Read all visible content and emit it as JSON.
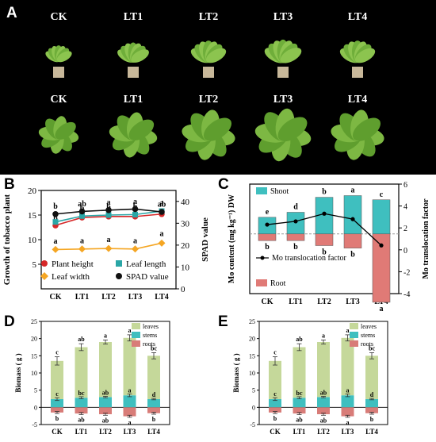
{
  "panel_a": {
    "letter": "A",
    "row_labels_top": [
      "CK",
      "LT1",
      "LT2",
      "LT3",
      "LT4"
    ],
    "row_labels_bottom": [
      "CK",
      "LT1",
      "LT2",
      "LT3",
      "LT4"
    ]
  },
  "chart_data": [
    {
      "panel": "B",
      "type": "line",
      "categories": [
        "CK",
        "LT1",
        "LT2",
        "LT3",
        "LT4"
      ],
      "ylabel": "Growth of tobacco plant",
      "ylabel_right": "SPAD value",
      "ylim": [
        0,
        20
      ],
      "ylim_right": [
        0,
        45
      ],
      "yticks": [
        5,
        10,
        15,
        20
      ],
      "yticks_right": [
        0,
        10,
        20,
        30,
        40
      ],
      "series": [
        {
          "name": "Plant height",
          "axis": "left",
          "color": "#d62728",
          "marker": "circle",
          "values": [
            12.9,
            14.5,
            14.7,
            14.7,
            15.2
          ],
          "errors": [
            0.4,
            0.3,
            0.3,
            0.3,
            0.3
          ],
          "letters": [
            "b",
            "a",
            "a",
            "a",
            "a"
          ]
        },
        {
          "name": "Leaf length",
          "axis": "left",
          "color": "#2aa6a6",
          "marker": "square",
          "values": [
            13.6,
            14.8,
            15.0,
            15.1,
            15.8
          ],
          "errors": [
            0.3,
            0.3,
            0.3,
            0.3,
            0.3
          ],
          "letters": [
            "c",
            "b",
            "b",
            "b",
            "a"
          ]
        },
        {
          "name": "Leaf width",
          "axis": "left",
          "color": "#f5a623",
          "marker": "diamond",
          "values": [
            8.0,
            8.1,
            8.2,
            8.1,
            9.3
          ],
          "errors": [
            0.4,
            0.4,
            0.5,
            0.4,
            0.6
          ],
          "letters": [
            "a",
            "a",
            "a",
            "a",
            "a"
          ]
        },
        {
          "name": "SPAD value",
          "axis": "right",
          "color": "#111111",
          "marker": "circle",
          "values": [
            34.2,
            35.4,
            36.0,
            36.5,
            35.2
          ],
          "errors": [
            0.6,
            0.6,
            0.6,
            0.5,
            0.5
          ],
          "letters": [
            "b",
            "ab",
            "a",
            "a",
            "ab"
          ]
        }
      ],
      "legend": "bottom"
    },
    {
      "panel": "C",
      "type": "bar",
      "categories": [
        "CK",
        "LT1",
        "LT2",
        "LT3",
        "LT4"
      ],
      "ylabel": "Mo content (mg kg⁻¹) DW",
      "ylabel_right": "Mo translocation factor",
      "yticks_right": [
        -4,
        -2,
        0,
        2,
        4,
        6
      ],
      "ylim_right": [
        -4,
        6
      ],
      "series": [
        {
          "name": "Shoot",
          "color": "#3fbfbf",
          "values": [
            2.0,
            2.6,
            4.4,
            4.6,
            4.1
          ],
          "letters": [
            "e",
            "d",
            "b",
            "a",
            "c"
          ]
        },
        {
          "name": "Root",
          "color": "#e07a76",
          "values": [
            -0.8,
            -0.8,
            -1.4,
            -1.7,
            -8.2
          ],
          "letters": [
            "b",
            "b",
            "b",
            "b",
            "a"
          ]
        },
        {
          "name": "Mo translocation factor",
          "color": "#000000",
          "type": "line",
          "values": [
            2.3,
            2.6,
            3.3,
            2.8,
            0.4
          ]
        }
      ],
      "legend": "top-left"
    },
    {
      "panel": "D",
      "type": "bar",
      "categories": [
        "CK",
        "LT1",
        "LT2",
        "LT3",
        "LT4"
      ],
      "ylabel": "Biomass ( g )",
      "yticks": [
        -5,
        0,
        5,
        10,
        15,
        20,
        25
      ],
      "ylim": [
        -5,
        25
      ],
      "series": [
        {
          "name": "leaves",
          "color": "#c5d89a",
          "values": [
            13.5,
            17.5,
            19.0,
            20.2,
            15.0
          ],
          "errors": [
            1.2,
            1.0,
            0.6,
            0.9,
            0.9
          ],
          "letters": [
            "c",
            "ab",
            "a",
            "a",
            "bc"
          ]
        },
        {
          "name": "stems",
          "color": "#3fbfbf",
          "values": [
            2.4,
            2.8,
            3.0,
            3.5,
            2.4
          ],
          "errors": [
            0.4,
            0.3,
            0.2,
            0.4,
            0.2
          ],
          "letters": [
            "c",
            "bc",
            "ab",
            "a",
            "d"
          ]
        },
        {
          "name": "roots",
          "color": "#d87c78",
          "values": [
            -1.5,
            -1.8,
            -2.0,
            -2.6,
            -1.7
          ],
          "errors": [
            0.3,
            0.3,
            0.3,
            0.3,
            0.3
          ],
          "letters": [
            "b",
            "ab",
            "ab",
            "a",
            "b"
          ]
        }
      ],
      "legend": "top-right"
    },
    {
      "panel": "E",
      "type": "bar",
      "categories": [
        "CK",
        "LT1",
        "LT2",
        "LT3",
        "LT4"
      ],
      "ylabel": "Biomass ( g )",
      "yticks": [
        -5,
        0,
        5,
        10,
        15,
        20,
        25
      ],
      "ylim": [
        -5,
        25
      ],
      "series": [
        {
          "name": "leaves",
          "color": "#c5d89a",
          "values": [
            13.5,
            17.5,
            19.0,
            20.2,
            15.0
          ],
          "errors": [
            1.2,
            1.0,
            0.6,
            0.9,
            0.9
          ],
          "letters": [
            "c",
            "ab",
            "a",
            "a",
            "bc"
          ]
        },
        {
          "name": "stems",
          "color": "#3fbfbf",
          "values": [
            2.4,
            2.8,
            3.0,
            3.5,
            2.4
          ],
          "errors": [
            0.4,
            0.3,
            0.2,
            0.4,
            0.2
          ],
          "letters": [
            "c",
            "bc",
            "ab",
            "a",
            "d"
          ]
        },
        {
          "name": "roots",
          "color": "#d87c78",
          "values": [
            -1.5,
            -1.8,
            -2.0,
            -2.6,
            -1.7
          ],
          "errors": [
            0.3,
            0.3,
            0.3,
            0.3,
            0.3
          ],
          "letters": [
            "b",
            "ab",
            "ab",
            "a",
            "b"
          ]
        }
      ],
      "legend": "top-right"
    }
  ]
}
